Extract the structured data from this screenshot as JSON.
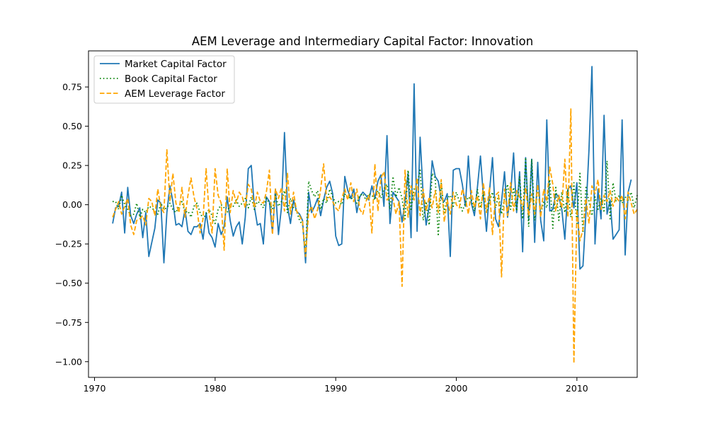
{
  "chart_data": {
    "type": "line",
    "title": "AEM Leverage and Intermediary Capital Factor: Innovation",
    "xlabel": "",
    "ylabel": "",
    "xlim": [
      1969.5,
      2015.0
    ],
    "ylim": [
      -1.1,
      0.98
    ],
    "xticks": [
      1970,
      1980,
      1990,
      2000,
      2010
    ],
    "xtick_labels": [
      "1970",
      "1980",
      "1990",
      "2000",
      "2010"
    ],
    "yticks": [
      -1.0,
      -0.75,
      -0.5,
      -0.25,
      0.0,
      0.25,
      0.5,
      0.75
    ],
    "ytick_labels": [
      "−1.00",
      "−0.75",
      "−0.50",
      "−0.25",
      "0.00",
      "0.25",
      "0.50",
      "0.75"
    ],
    "grid": false,
    "legend_position": "top-left",
    "x_start": 1971.5,
    "x_step": 0.25,
    "series": [
      {
        "name": "Market Capital Factor",
        "color": "#1f77b4",
        "style": "solid",
        "values": [
          -0.12,
          -0.02,
          -0.01,
          0.08,
          -0.18,
          0.11,
          -0.07,
          -0.12,
          -0.06,
          -0.02,
          -0.21,
          -0.05,
          -0.33,
          -0.24,
          -0.15,
          0.03,
          0.01,
          -0.37,
          -0.05,
          0.12,
          0.02,
          -0.13,
          -0.12,
          -0.14,
          -0.03,
          -0.17,
          -0.19,
          -0.14,
          -0.14,
          -0.12,
          -0.22,
          -0.05,
          -0.18,
          -0.21,
          -0.27,
          -0.12,
          -0.19,
          -0.14,
          0.05,
          -0.1,
          -0.2,
          -0.14,
          -0.11,
          -0.25,
          -0.08,
          0.23,
          0.25,
          -0.01,
          -0.13,
          -0.12,
          -0.25,
          0.05,
          0.02,
          -0.18,
          0.1,
          -0.19,
          -0.02,
          0.46,
          -0.01,
          -0.12,
          0.03,
          -0.04,
          -0.06,
          -0.1,
          -0.37,
          0.08,
          -0.05,
          -0.01,
          0.04,
          -0.07,
          0.03,
          0.11,
          0.15,
          0.07,
          -0.2,
          -0.26,
          -0.25,
          0.18,
          0.09,
          0.04,
          0.1,
          -0.05,
          0.05,
          0.08,
          0.06,
          0.03,
          0.12,
          0.04,
          0.15,
          0.19,
          -0.01,
          0.44,
          -0.12,
          0.08,
          0.05,
          0.02,
          -0.11,
          0.02,
          0.2,
          -0.21,
          0.77,
          -0.17,
          0.43,
          0.06,
          -0.13,
          -0.01,
          0.28,
          0.18,
          0.15,
          0.04,
          0.02,
          0.07,
          -0.33,
          0.22,
          0.23,
          0.23,
          0.13,
          -0.01,
          0.31,
          0.01,
          -0.07,
          0.11,
          0.31,
          0.05,
          -0.17,
          0.08,
          0.3,
          -0.09,
          -0.14,
          0.02,
          0.21,
          -0.08,
          0.07,
          0.33,
          -0.05,
          0.21,
          -0.3,
          0.3,
          -0.1,
          0.29,
          -0.24,
          0.27,
          -0.1,
          -0.23,
          0.54,
          -0.04,
          -0.03,
          0.07,
          0.05,
          -0.03,
          -0.22,
          0.1,
          0.12,
          -0.02,
          0.14,
          -0.41,
          -0.39,
          -0.05,
          0.35,
          0.88,
          -0.25,
          0.1,
          -0.09,
          0.57,
          -0.06,
          0.03,
          -0.22,
          -0.19,
          -0.16,
          0.54,
          -0.32,
          0.08,
          0.16
        ]
      },
      {
        "name": "Book Capital Factor",
        "color": "#008000",
        "style": "dotted",
        "values": [
          0.02,
          0.02,
          -0.03,
          0.06,
          0.0,
          -0.03,
          -0.07,
          -0.06,
          0.01,
          -0.08,
          -0.03,
          -0.05,
          -0.01,
          -0.02,
          -0.04,
          -0.06,
          0.01,
          -0.03,
          -0.02,
          0.01,
          -0.03,
          -0.05,
          -0.01,
          0.02,
          -0.05,
          -0.04,
          -0.08,
          -0.01,
          0.01,
          -0.05,
          -0.09,
          -0.06,
          -0.03,
          -0.07,
          -0.12,
          -0.03,
          0.0,
          -0.02,
          -0.05,
          0.01,
          -0.01,
          0.03,
          -0.01,
          0.01,
          0.04,
          -0.02,
          0.05,
          -0.03,
          0.02,
          0.01,
          -0.02,
          0.04,
          0.01,
          -0.03,
          0.06,
          -0.01,
          0.02,
          0.09,
          -0.05,
          0.04,
          -0.02,
          -0.04,
          -0.1,
          -0.13,
          -0.3,
          0.15,
          0.09,
          0.05,
          0.09,
          -0.03,
          0.04,
          0.01,
          0.1,
          0.05,
          0.01,
          0.02,
          0.0,
          0.07,
          0.04,
          0.05,
          0.02,
          0.01,
          0.06,
          0.07,
          0.03,
          0.07,
          0.06,
          0.03,
          0.09,
          0.04,
          0.1,
          0.13,
          -0.03,
          0.18,
          0.05,
          0.11,
          0.04,
          -0.09,
          0.22,
          -0.03,
          0.1,
          0.13,
          0.22,
          -0.1,
          0.02,
          -0.13,
          0.2,
          0.17,
          -0.2,
          0.14,
          -0.05,
          0.04,
          0.06,
          -0.01,
          0.08,
          0.02,
          -0.04,
          0.01,
          0.05,
          0.03,
          -0.04,
          0.1,
          -0.02,
          0.08,
          -0.05,
          0.02,
          0.08,
          -0.02,
          0.06,
          -0.06,
          0.04,
          0.13,
          -0.03,
          0.11,
          -0.04,
          0.18,
          -0.09,
          0.3,
          -0.14,
          0.29,
          -0.1,
          0.12,
          -0.06,
          0.02,
          -0.02,
          0.16,
          -0.15,
          0.11,
          -0.1,
          0.08,
          -0.05,
          0.09,
          -0.08,
          0.14,
          -0.12,
          0.2,
          -0.18,
          0.11,
          0.02,
          -0.07,
          0.05,
          -0.03,
          0.04,
          -0.05,
          0.28,
          -0.09,
          0.14,
          0.02,
          0.06,
          0.01,
          0.05,
          0.03,
          0.08,
          -0.02,
          0.06
        ]
      },
      {
        "name": "AEM Leverage Factor",
        "color": "#ffa500",
        "style": "dashed",
        "values": [
          -0.08,
          -0.03,
          0.02,
          -0.06,
          -0.01,
          0.04,
          -0.13,
          -0.19,
          -0.1,
          -0.09,
          -0.07,
          -0.13,
          0.04,
          0.02,
          -0.07,
          0.1,
          -0.02,
          -0.05,
          0.35,
          0.02,
          0.2,
          0.01,
          -0.05,
          0.11,
          -0.08,
          0.06,
          0.17,
          0.05,
          -0.03,
          -0.18,
          -0.09,
          0.23,
          -0.05,
          -0.18,
          0.23,
          0.06,
          0.01,
          -0.29,
          0.23,
          -0.05,
          0.09,
          0.01,
          0.08,
          0.05,
          -0.02,
          0.13,
          0.1,
          -0.02,
          0.08,
          0.02,
          0.01,
          0.08,
          0.22,
          -0.19,
          0.1,
          0.04,
          0.11,
          -0.04,
          0.2,
          -0.06,
          0.08,
          -0.04,
          -0.07,
          -0.11,
          -0.33,
          -0.05,
          -0.01,
          -0.09,
          -0.03,
          0.1,
          0.26,
          0.03,
          0.05,
          0.02,
          -0.02,
          -0.04,
          0.04,
          0.1,
          0.03,
          0.14,
          0.02,
          0.1,
          -0.03,
          -0.06,
          0.02,
          0.06,
          -0.18,
          0.26,
          -0.04,
          0.17,
          0.21,
          0.03,
          0.05,
          0.04,
          -0.06,
          0.02,
          -0.52,
          0.22,
          -0.08,
          0.12,
          0.03,
          0.17,
          -0.07,
          0.1,
          -0.04,
          0.05,
          -0.02,
          0.09,
          -0.05,
          0.16,
          -0.11,
          0.03,
          -0.06,
          0.08,
          0.0,
          -0.02,
          0.1,
          0.04,
          -0.06,
          0.09,
          -0.02,
          0.06,
          -0.09,
          0.14,
          -0.05,
          0.11,
          -0.19,
          0.06,
          0.08,
          -0.46,
          0.1,
          -0.07,
          0.14,
          -0.04,
          0.09,
          0.05,
          -0.03,
          0.11,
          -0.07,
          0.07,
          -0.06,
          0.13,
          -0.08,
          0.1,
          0.02,
          0.24,
          0.13,
          -0.04,
          0.06,
          -0.02,
          0.29,
          -0.08,
          0.61,
          -1.01,
          -0.03,
          -0.23,
          -0.16,
          0.04,
          -0.12,
          0.12,
          0.07,
          0.16,
          -0.03,
          0.06,
          0.02,
          0.09,
          -0.01,
          0.05,
          0.02,
          0.06,
          -0.09,
          0.08,
          0.01,
          -0.06,
          -0.03
        ]
      }
    ]
  }
}
